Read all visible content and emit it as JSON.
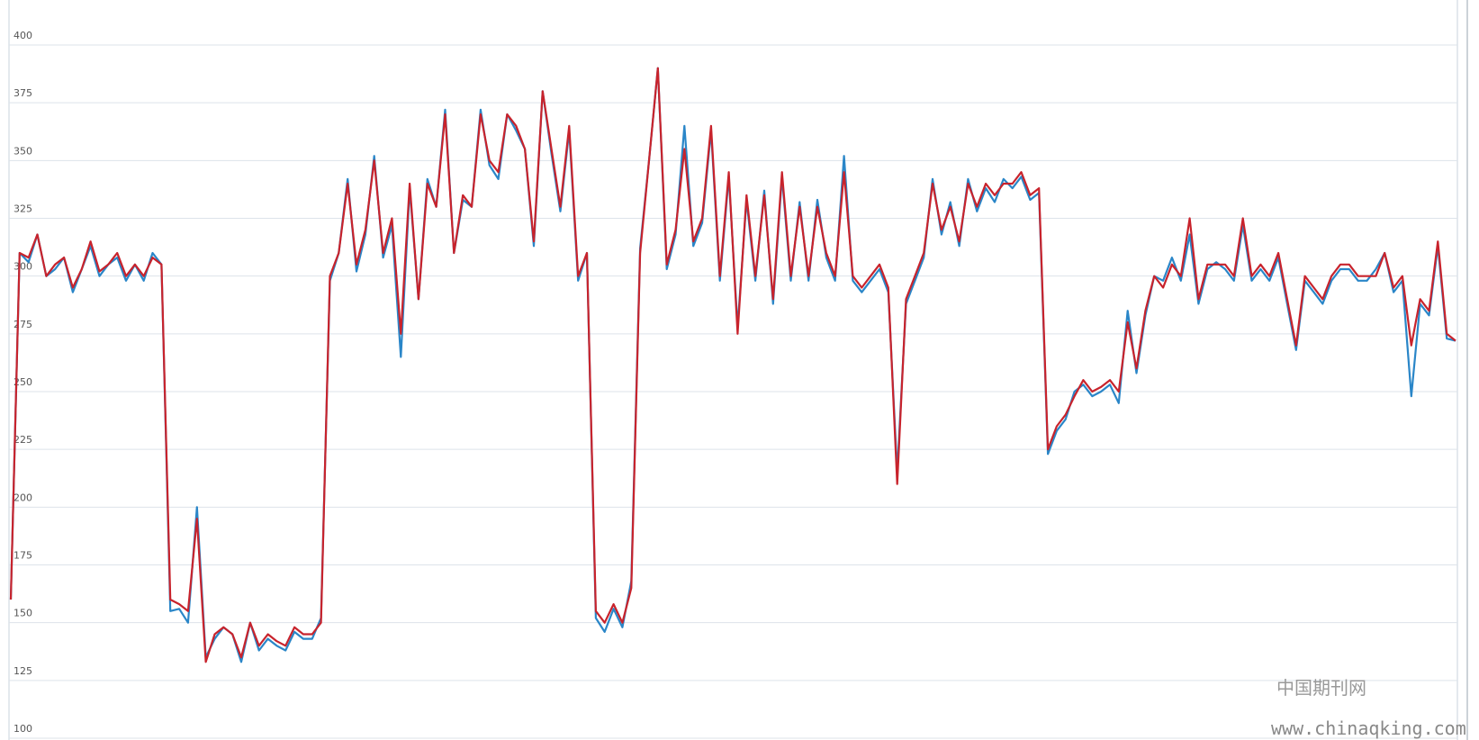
{
  "chart_data": {
    "type": "line",
    "categories": [
      null,
      null,
      null,
      null,
      null,
      null,
      null,
      null,
      null,
      null,
      null,
      null,
      null,
      null,
      null,
      null,
      null,
      null,
      null,
      null,
      null,
      null,
      null,
      null,
      null,
      null,
      null,
      null,
      null,
      null,
      null,
      null,
      null,
      null,
      null,
      null,
      null,
      null,
      null,
      null,
      null,
      null,
      null,
      null,
      null,
      null,
      null,
      null,
      null,
      null,
      null,
      null,
      null,
      null,
      null,
      null,
      null,
      null,
      null,
      null,
      null,
      null,
      null,
      null,
      null,
      null,
      null,
      null,
      null,
      null,
      null,
      null,
      null,
      null,
      null,
      null,
      null,
      null,
      null,
      null,
      null,
      null,
      null,
      null,
      null,
      null,
      null,
      null,
      null,
      null,
      null,
      null,
      null,
      null,
      null,
      null,
      null,
      null,
      null,
      null,
      null,
      null,
      null,
      null,
      null,
      null,
      null,
      null,
      null,
      null,
      null,
      null,
      null,
      null,
      null,
      null,
      null,
      null,
      null,
      null,
      null,
      null,
      null,
      null,
      null,
      null,
      null,
      null,
      null,
      null,
      null,
      null,
      null,
      null,
      null,
      null,
      null,
      null,
      null,
      null,
      null,
      null,
      null,
      null,
      null,
      null,
      null,
      null,
      null,
      null,
      null,
      null,
      null,
      null,
      null,
      null,
      null,
      null,
      null,
      null,
      null,
      null,
      null,
      null
    ],
    "series": [
      {
        "color": "#2a86c8",
        "values": [
          160,
          310,
          306,
          318,
          300,
          303,
          308,
          293,
          303,
          313,
          300,
          305,
          308,
          298,
          305,
          298,
          310,
          305,
          155,
          156,
          150,
          200,
          135,
          143,
          148,
          145,
          133,
          150,
          138,
          143,
          140,
          138,
          146,
          143,
          143,
          152,
          298,
          310,
          342,
          302,
          318,
          352,
          308,
          322,
          265,
          338,
          290,
          342,
          330,
          372,
          310,
          333,
          330,
          372,
          348,
          342,
          370,
          363,
          355,
          313,
          380,
          353,
          328,
          363,
          298,
          310,
          152,
          146,
          156,
          148,
          168,
          312,
          350,
          390,
          303,
          318,
          365,
          313,
          323,
          363,
          298,
          343,
          278,
          333,
          298,
          337,
          288,
          343,
          298,
          332,
          298,
          333,
          308,
          298,
          352,
          298,
          293,
          298,
          303,
          293,
          215,
          288,
          298,
          308,
          342,
          318,
          332,
          313,
          342,
          328,
          338,
          332,
          342,
          338,
          343,
          333,
          336,
          223,
          233,
          238,
          250,
          253,
          248,
          250,
          253,
          245,
          285,
          258,
          283,
          300,
          298,
          308,
          298,
          318,
          288,
          303,
          306,
          303,
          298,
          322,
          298,
          303,
          298,
          308,
          288,
          268,
          298,
          293,
          288,
          298,
          303,
          303,
          298,
          298,
          303,
          310,
          293,
          298,
          248,
          288,
          283,
          313,
          273,
          272
        ]
      },
      {
        "color": "#c8232c",
        "values": [
          160,
          310,
          308,
          318,
          300,
          305,
          308,
          295,
          303,
          315,
          302,
          305,
          310,
          300,
          305,
          300,
          308,
          305,
          160,
          158,
          155,
          195,
          133,
          145,
          148,
          145,
          135,
          150,
          140,
          145,
          142,
          140,
          148,
          145,
          145,
          150,
          300,
          310,
          340,
          305,
          320,
          350,
          310,
          325,
          275,
          340,
          290,
          340,
          330,
          370,
          310,
          335,
          330,
          370,
          350,
          345,
          370,
          365,
          355,
          315,
          380,
          355,
          330,
          365,
          300,
          310,
          155,
          150,
          158,
          150,
          165,
          310,
          350,
          390,
          305,
          320,
          355,
          315,
          325,
          365,
          300,
          345,
          275,
          335,
          300,
          335,
          290,
          345,
          300,
          330,
          300,
          330,
          310,
          300,
          345,
          300,
          295,
          300,
          305,
          295,
          210,
          290,
          300,
          310,
          340,
          320,
          330,
          315,
          340,
          330,
          340,
          335,
          340,
          340,
          345,
          335,
          338,
          225,
          235,
          240,
          248,
          255,
          250,
          252,
          255,
          250,
          280,
          260,
          285,
          300,
          295,
          305,
          300,
          325,
          290,
          305,
          305,
          305,
          300,
          325,
          300,
          305,
          300,
          310,
          290,
          270,
          300,
          295,
          290,
          300,
          305,
          305,
          300,
          300,
          300,
          310,
          295,
          300,
          270,
          290,
          285,
          315,
          275,
          272
        ]
      }
    ],
    "ylim": [
      100,
      400
    ],
    "yticks": [
      100,
      125,
      150,
      175,
      200,
      225,
      250,
      275,
      300,
      325,
      350,
      375,
      400
    ],
    "grid": true,
    "annotations": [
      "中国期刊网",
      "www.chinaqking.com"
    ]
  }
}
